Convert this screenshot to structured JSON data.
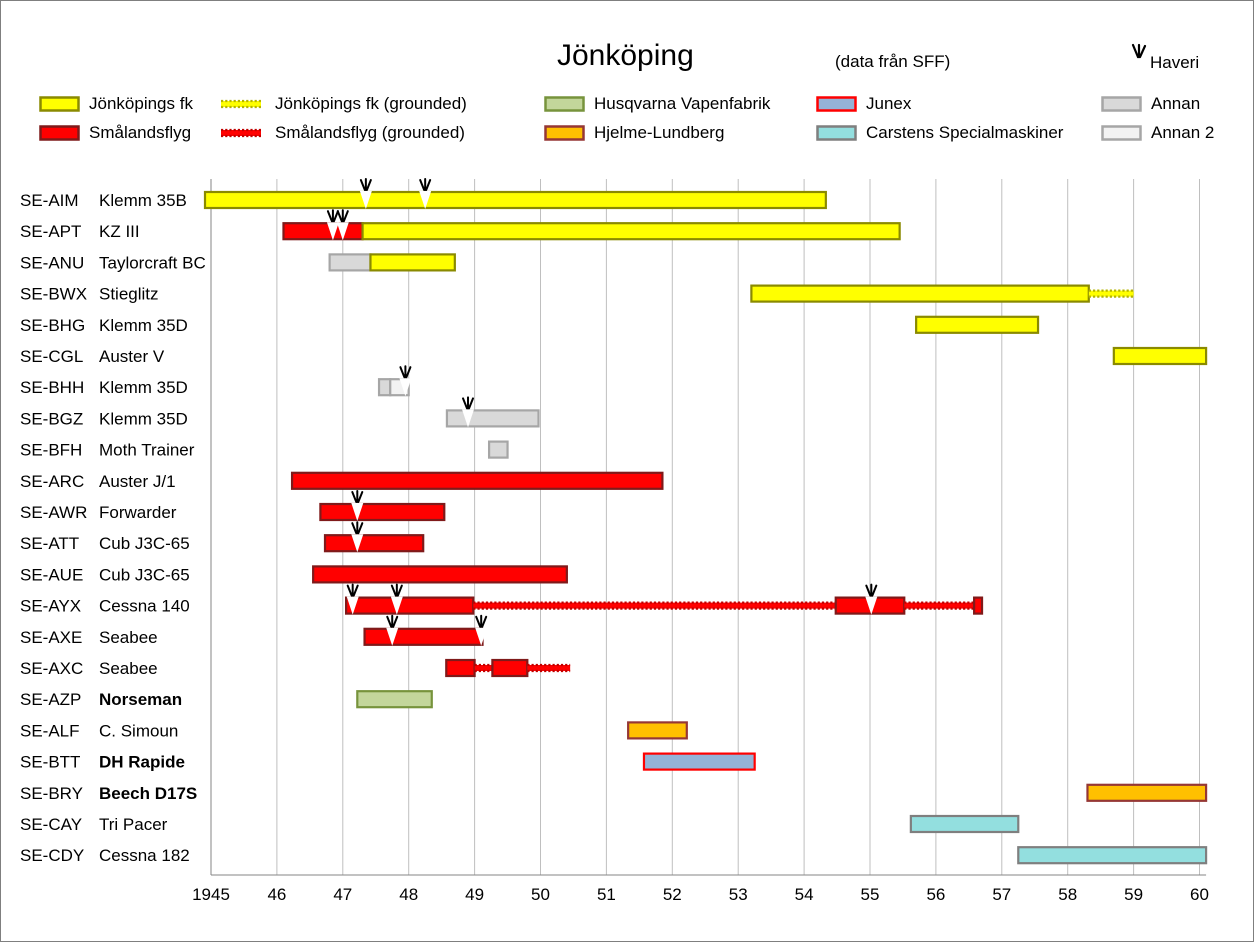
{
  "title": "Jönköping",
  "subtitle": "(data från SFF)",
  "haveri_label": "Haveri",
  "legend": [
    {
      "label": "Jönköpings fk",
      "fill": "#ffff00",
      "border": "#8a8a00",
      "style": "solid"
    },
    {
      "label": "Jönköpings fk (grounded)",
      "fill": "#ffff00",
      "border": "#b3b300",
      "style": "dotted"
    },
    {
      "label": "Husqvarna Vapenfabrik",
      "fill": "#c3d69b",
      "border": "#77933c",
      "style": "solid"
    },
    {
      "label": "Junex",
      "fill": "#95b3d7",
      "border": "#ff0000",
      "style": "solid"
    },
    {
      "label": "Annan",
      "fill": "#d9d9d9",
      "border": "#a6a6a6",
      "style": "solid"
    },
    {
      "label": "Smålandsflyg",
      "fill": "#ff0000",
      "border": "#7f1a1a",
      "style": "solid"
    },
    {
      "label": "Smålandsflyg (grounded)",
      "fill": "#ff0000",
      "border": "#c00000",
      "style": "dotted"
    },
    {
      "label": "Hjelme-Lundberg",
      "fill": "#ffc000",
      "border": "#953735",
      "style": "solid"
    },
    {
      "label": "Carstens Specialmaskiner",
      "fill": "#93dfdf",
      "border": "#7f7f7f",
      "style": "solid"
    },
    {
      "label": "Annan 2",
      "fill": "#f2f2f2",
      "border": "#a6a6a6",
      "style": "solid"
    }
  ],
  "chart_data": {
    "type": "gantt",
    "x_ticks": [
      "1945",
      "46",
      "47",
      "48",
      "49",
      "50",
      "51",
      "52",
      "53",
      "54",
      "55",
      "56",
      "57",
      "58",
      "59",
      "60"
    ],
    "xlim": [
      1945,
      1960.1
    ],
    "grid": "vertical",
    "rows": [
      {
        "reg": "SE-AIM",
        "type": "Klemm 35B",
        "bold": false,
        "segments": [
          {
            "cat": "Jönköpings fk",
            "start": 1944.9,
            "end": 1954.33
          }
        ],
        "crashes": [
          1947.35,
          1948.25
        ]
      },
      {
        "reg": "SE-APT",
        "type": "KZ III",
        "bold": false,
        "segments": [
          {
            "cat": "Smålandsflyg",
            "start": 1946.1,
            "end": 1947.3
          },
          {
            "cat": "Jönköpings fk",
            "start": 1947.3,
            "end": 1955.45
          }
        ],
        "crashes": [
          1946.85,
          1947.0
        ]
      },
      {
        "reg": "SE-ANU",
        "type": "Taylorcraft BC",
        "bold": false,
        "segments": [
          {
            "cat": "Annan",
            "start": 1946.8,
            "end": 1947.42
          },
          {
            "cat": "Jönköpings fk",
            "start": 1947.42,
            "end": 1948.7
          }
        ],
        "crashes": []
      },
      {
        "reg": "SE-BWX",
        "type": "Stieglitz",
        "bold": false,
        "segments": [
          {
            "cat": "Jönköpings fk",
            "start": 1953.2,
            "end": 1958.32
          },
          {
            "cat": "Jönköpings fk (grounded)",
            "start": 1958.32,
            "end": 1959.0
          }
        ],
        "crashes": []
      },
      {
        "reg": "SE-BHG",
        "type": "Klemm 35D",
        "bold": false,
        "segments": [
          {
            "cat": "Jönköpings fk",
            "start": 1955.7,
            "end": 1957.55
          }
        ],
        "crashes": []
      },
      {
        "reg": "SE-CGL",
        "type": "Auster V",
        "bold": false,
        "segments": [
          {
            "cat": "Jönköpings fk",
            "start": 1958.7,
            "end": 1960.1
          }
        ],
        "crashes": []
      },
      {
        "reg": "SE-BHH",
        "type": "Klemm 35D",
        "bold": false,
        "segments": [
          {
            "cat": "Annan",
            "start": 1947.55,
            "end": 1947.72
          },
          {
            "cat": "Annan 2",
            "start": 1947.72,
            "end": 1948.0
          }
        ],
        "crashes": [
          1947.95
        ]
      },
      {
        "reg": "SE-BGZ",
        "type": "Klemm 35D",
        "bold": false,
        "segments": [
          {
            "cat": "Annan",
            "start": 1948.58,
            "end": 1949.97
          }
        ],
        "crashes": [
          1948.9
        ]
      },
      {
        "reg": "SE-BFH",
        "type": "Moth Trainer",
        "bold": false,
        "segments": [
          {
            "cat": "Annan",
            "start": 1949.22,
            "end": 1949.5
          }
        ],
        "crashes": []
      },
      {
        "reg": "SE-ARC",
        "type": "Auster J/1",
        "bold": false,
        "segments": [
          {
            "cat": "Smålandsflyg",
            "start": 1946.23,
            "end": 1951.85
          }
        ],
        "crashes": []
      },
      {
        "reg": "SE-AWR",
        "type": "Forwarder",
        "bold": false,
        "segments": [
          {
            "cat": "Smålandsflyg",
            "start": 1946.66,
            "end": 1948.54
          }
        ],
        "crashes": [
          1947.22
        ]
      },
      {
        "reg": "SE-ATT",
        "type": "Cub J3C-65",
        "bold": false,
        "segments": [
          {
            "cat": "Smålandsflyg",
            "start": 1946.73,
            "end": 1948.22
          }
        ],
        "crashes": [
          1947.22
        ]
      },
      {
        "reg": "SE-AUE",
        "type": "Cub J3C-65",
        "bold": false,
        "segments": [
          {
            "cat": "Smålandsflyg",
            "start": 1946.55,
            "end": 1950.4
          }
        ],
        "crashes": []
      },
      {
        "reg": "SE-AYX",
        "type": "Cessna 140",
        "bold": false,
        "segments": [
          {
            "cat": "Smålandsflyg",
            "start": 1947.05,
            "end": 1948.98
          },
          {
            "cat": "Smålandsflyg (grounded)",
            "start": 1948.98,
            "end": 1954.48
          },
          {
            "cat": "Smålandsflyg",
            "start": 1954.48,
            "end": 1955.52
          },
          {
            "cat": "Smålandsflyg (grounded)",
            "start": 1955.52,
            "end": 1956.58
          },
          {
            "cat": "Smålandsflyg",
            "start": 1956.58,
            "end": 1956.7
          }
        ],
        "crashes": [
          1947.15,
          1947.82,
          1955.02
        ]
      },
      {
        "reg": "SE-AXE",
        "type": "Seabee",
        "bold": false,
        "segments": [
          {
            "cat": "Smålandsflyg",
            "start": 1947.33,
            "end": 1949.12
          }
        ],
        "crashes": [
          1947.75,
          1949.1
        ]
      },
      {
        "reg": "SE-AXC",
        "type": "Seabee",
        "bold": false,
        "segments": [
          {
            "cat": "Smålandsflyg",
            "start": 1948.57,
            "end": 1949.0
          },
          {
            "cat": "Smålandsflyg (grounded)",
            "start": 1949.0,
            "end": 1949.27
          },
          {
            "cat": "Smålandsflyg",
            "start": 1949.27,
            "end": 1949.8
          },
          {
            "cat": "Smålandsflyg (grounded)",
            "start": 1949.8,
            "end": 1950.45
          }
        ],
        "crashes": []
      },
      {
        "reg": "SE-AZP",
        "type": "Norseman",
        "bold": true,
        "segments": [
          {
            "cat": "Husqvarna Vapenfabrik",
            "start": 1947.22,
            "end": 1948.35
          }
        ],
        "crashes": []
      },
      {
        "reg": "SE-ALF",
        "type": "C. Simoun",
        "bold": false,
        "segments": [
          {
            "cat": "Hjelme-Lundberg",
            "start": 1951.33,
            "end": 1952.22
          }
        ],
        "crashes": []
      },
      {
        "reg": "SE-BTT",
        "type": "DH Rapide",
        "bold": true,
        "segments": [
          {
            "cat": "Junex",
            "start": 1951.57,
            "end": 1953.25
          }
        ],
        "crashes": []
      },
      {
        "reg": "SE-BRY",
        "type": "Beech D17S",
        "bold": true,
        "segments": [
          {
            "cat": "Hjelme-Lundberg",
            "start": 1958.3,
            "end": 1960.1
          }
        ],
        "crashes": []
      },
      {
        "reg": "SE-CAY",
        "type": "Tri Pacer",
        "bold": false,
        "segments": [
          {
            "cat": "Carstens Specialmaskiner",
            "start": 1955.62,
            "end": 1957.25
          }
        ],
        "crashes": []
      },
      {
        "reg": "SE-CDY",
        "type": "Cessna 182",
        "bold": false,
        "segments": [
          {
            "cat": "Carstens Specialmaskiner",
            "start": 1957.25,
            "end": 1960.1
          }
        ],
        "crashes": []
      }
    ]
  }
}
